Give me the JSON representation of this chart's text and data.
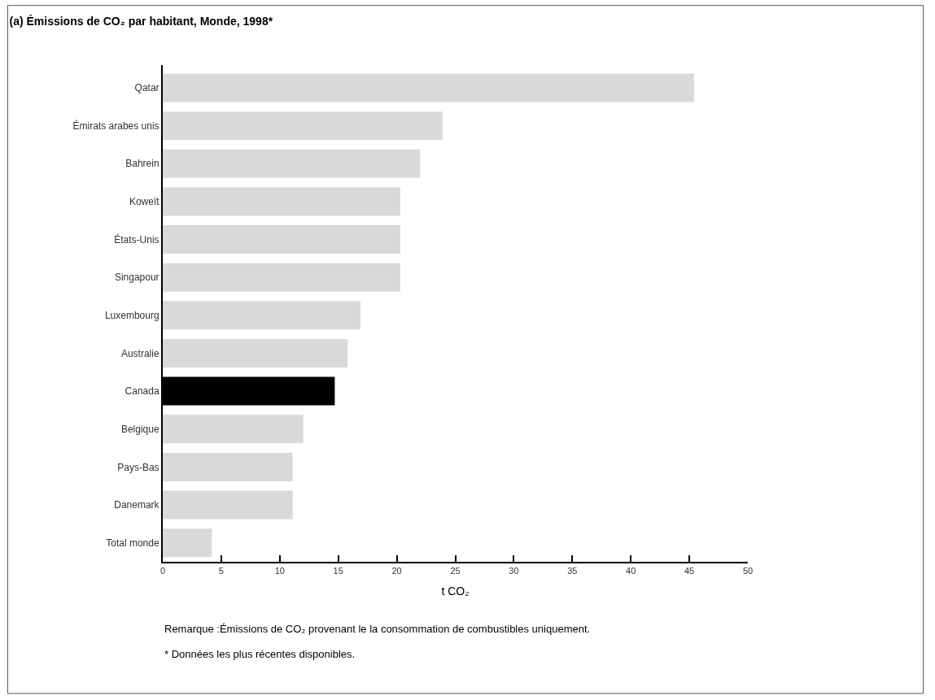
{
  "chart_data": {
    "type": "bar",
    "orientation": "horizontal",
    "title": "(a) Émissions de CO₂ par habitant, Monde, 1998*",
    "xlabel": "t CO₂",
    "categories": [
      "Qatar",
      "Émirats arabes unis",
      "Bahrein",
      "Koweït",
      "États-Unis",
      "Singapour",
      "Luxembourg",
      "Australie",
      "Canada",
      "Belgique",
      "Pays-Bas",
      "Danemark",
      "Total monde"
    ],
    "values": [
      45.4,
      23.9,
      22.0,
      20.3,
      20.3,
      20.3,
      16.9,
      15.8,
      14.7,
      12.0,
      11.1,
      11.1,
      4.2
    ],
    "colors": [
      "#d9d9d9",
      "#d9d9d9",
      "#d9d9d9",
      "#d9d9d9",
      "#d9d9d9",
      "#d9d9d9",
      "#d9d9d9",
      "#d9d9d9",
      "#000000",
      "#d9d9d9",
      "#d9d9d9",
      "#d9d9d9",
      "#d9d9d9"
    ],
    "xlim": [
      0,
      50
    ],
    "xticks": [
      0,
      5,
      10,
      15,
      20,
      25,
      30,
      35,
      40,
      45,
      50
    ],
    "legend": false,
    "annotations": [
      "Remarque :Émissions de CO₂ provenant le la consommation de combustibles uniquement.",
      "* Données les plus récentes disponibles."
    ]
  }
}
